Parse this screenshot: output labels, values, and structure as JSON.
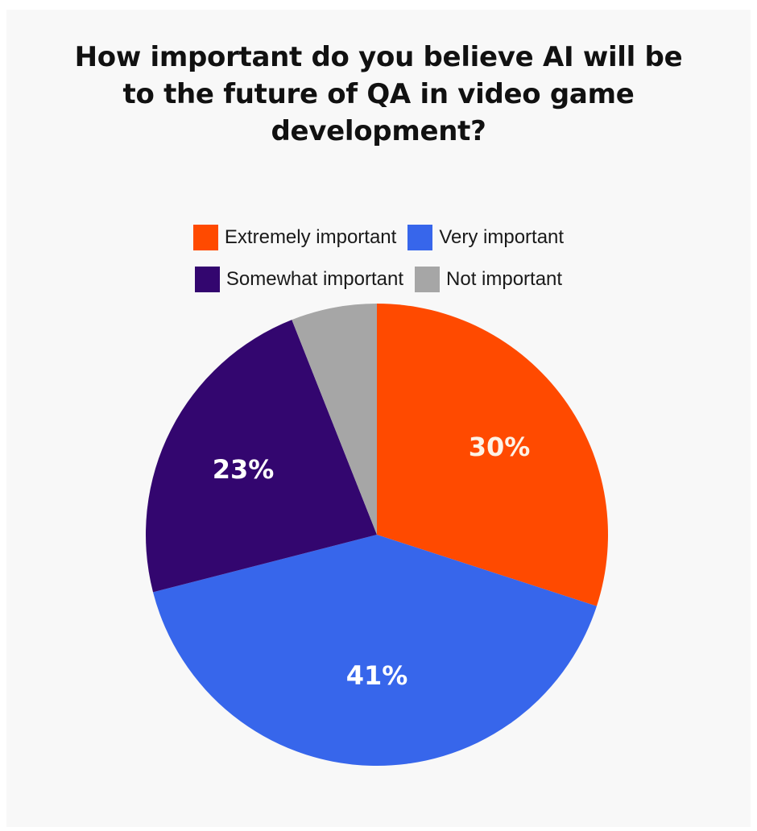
{
  "title": "How important do you believe AI will be to the future of QA in video game development?",
  "title_lines": [
    "How important do you believe AI will be",
    "to the future of QA in video game",
    "development?"
  ],
  "legend": [
    {
      "label": "Extremely important",
      "color": "#ff4a00"
    },
    {
      "label": "Very important",
      "color": "#3766eb"
    },
    {
      "label": "Somewhat important",
      "color": "#33066f"
    },
    {
      "label": "Not important",
      "color": "#a6a6a6"
    }
  ],
  "labels": {
    "extremely": "30%",
    "very": "41%",
    "somewhat": "23%"
  },
  "chart_data": {
    "type": "pie",
    "title": "How important do you believe AI will be to the future of QA in video game development?",
    "categories": [
      "Extremely important",
      "Very important",
      "Somewhat important",
      "Not important"
    ],
    "values": [
      30,
      41,
      23,
      6
    ],
    "unit": "%",
    "data_labels": [
      "30%",
      "41%",
      "23%",
      ""
    ],
    "colors": [
      "#ff4a00",
      "#3766eb",
      "#33066f",
      "#a6a6a6"
    ],
    "start_angle_deg": 0,
    "direction": "clockwise",
    "legend_position": "top"
  }
}
